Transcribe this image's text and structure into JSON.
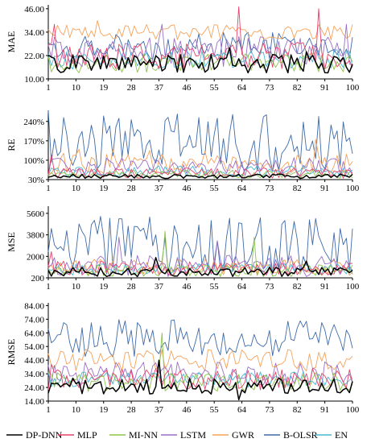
{
  "legend": [
    {
      "name": "DP-DNN",
      "color": "#000000"
    },
    {
      "name": "MLP",
      "color": "#e8416a"
    },
    {
      "name": "MI-NN",
      "color": "#8dc34a"
    },
    {
      "name": "LSTM",
      "color": "#9b6fc7"
    },
    {
      "name": "GWR",
      "color": "#f5a25a"
    },
    {
      "name": "B-OLSR",
      "color": "#3e6aa8"
    },
    {
      "name": "EN",
      "color": "#49b7cf"
    }
  ],
  "chart_data": [
    {
      "type": "line",
      "ylabel": "MAE",
      "x_ticks": [
        "1",
        "10",
        "19",
        "28",
        "37",
        "46",
        "55",
        "64",
        "73",
        "82",
        "91",
        "100"
      ],
      "y_ticks": [
        "10.00",
        "22.00",
        "34.00",
        "46.00"
      ],
      "ylim": [
        10,
        48
      ],
      "x": {
        "start": 1,
        "end": 100
      },
      "series": [
        {
          "name": "DP-DNN",
          "approx": true,
          "base": 18,
          "amp": 5,
          "spikes": [
            [
              60,
              26
            ],
            [
              85,
              24
            ]
          ]
        },
        {
          "name": "MLP",
          "approx": true,
          "base": 22,
          "amp": 7,
          "spikes": [
            [
              3,
              38
            ],
            [
              63,
              47
            ],
            [
              89,
              46
            ]
          ]
        },
        {
          "name": "MI-NN",
          "approx": true,
          "base": 18,
          "amp": 5,
          "spikes": []
        },
        {
          "name": "LSTM",
          "approx": true,
          "base": 24,
          "amp": 8,
          "spikes": [
            [
              38,
              38
            ],
            [
              98,
              38
            ]
          ]
        },
        {
          "name": "GWR",
          "approx": true,
          "base": 34,
          "amp": 4,
          "spikes": [
            [
              17,
              40
            ]
          ]
        },
        {
          "name": "B-OLSR",
          "approx": true,
          "base": 27,
          "amp": 7,
          "spikes": []
        },
        {
          "name": "EN",
          "approx": true,
          "base": 20,
          "amp": 5,
          "spikes": []
        }
      ]
    },
    {
      "type": "line",
      "ylabel": "RE",
      "x_ticks": [
        "1",
        "10",
        "19",
        "28",
        "37",
        "46",
        "55",
        "64",
        "73",
        "82",
        "91",
        "100"
      ],
      "y_ticks": [
        "30%",
        "100%",
        "170%",
        "240%"
      ],
      "ylim": [
        30,
        280
      ],
      "x": {
        "start": 1,
        "end": 100
      },
      "series": [
        {
          "name": "DP-DNN",
          "approx": true,
          "base": 42,
          "amp": 8,
          "spikes": []
        },
        {
          "name": "MLP",
          "approx": true,
          "base": 55,
          "amp": 20,
          "spikes": [
            [
              2,
              120
            ]
          ]
        },
        {
          "name": "MI-NN",
          "approx": true,
          "base": 50,
          "amp": 15,
          "spikes": []
        },
        {
          "name": "LSTM",
          "approx": true,
          "base": 75,
          "amp": 35,
          "spikes": []
        },
        {
          "name": "GWR",
          "approx": true,
          "base": 95,
          "amp": 45,
          "spikes": [
            [
              88,
              175
            ]
          ]
        },
        {
          "name": "B-OLSR",
          "approx": true,
          "base": 170,
          "amp": 110,
          "spikes": []
        },
        {
          "name": "EN",
          "approx": true,
          "base": 60,
          "amp": 20,
          "spikes": []
        }
      ]
    },
    {
      "type": "line",
      "ylabel": "MSE",
      "x_ticks": [
        "1",
        "10",
        "19",
        "28",
        "37",
        "46",
        "55",
        "64",
        "73",
        "82",
        "91",
        "100"
      ],
      "y_ticks": [
        "200",
        "2000",
        "3800",
        "5600"
      ],
      "ylim": [
        200,
        6200
      ],
      "x": {
        "start": 1,
        "end": 100
      },
      "series": [
        {
          "name": "DP-DNN",
          "approx": true,
          "base": 700,
          "amp": 400,
          "spikes": [
            [
              36,
              1900
            ],
            [
              85,
              1600
            ]
          ]
        },
        {
          "name": "MLP",
          "approx": true,
          "base": 1000,
          "amp": 600,
          "spikes": [
            [
              2,
              2400
            ]
          ]
        },
        {
          "name": "MI-NN",
          "approx": true,
          "base": 800,
          "amp": 500,
          "spikes": [
            [
              39,
              4100
            ],
            [
              68,
              3600
            ]
          ]
        },
        {
          "name": "LSTM",
          "approx": true,
          "base": 1200,
          "amp": 900,
          "spikes": [
            [
              24,
              3600
            ],
            [
              56,
              3300
            ]
          ]
        },
        {
          "name": "GWR",
          "approx": true,
          "base": 1100,
          "amp": 700,
          "spikes": []
        },
        {
          "name": "B-OLSR",
          "approx": true,
          "base": 3000,
          "amp": 2500,
          "spikes": []
        },
        {
          "name": "EN",
          "approx": true,
          "base": 900,
          "amp": 500,
          "spikes": []
        }
      ]
    },
    {
      "type": "line",
      "ylabel": "RMSE",
      "x_ticks": [
        "1",
        "10",
        "19",
        "28",
        "37",
        "46",
        "55",
        "64",
        "73",
        "82",
        "91",
        "100"
      ],
      "y_ticks": [
        "14.00",
        "24.00",
        "34.00",
        "44.00",
        "54.00",
        "64.00",
        "74.00",
        "84.00"
      ],
      "ylim": [
        14,
        86
      ],
      "x": {
        "start": 1,
        "end": 100
      },
      "series": [
        {
          "name": "DP-DNN",
          "approx": true,
          "base": 25,
          "amp": 6,
          "spikes": [
            [
              37,
              44
            ],
            [
              63,
              15
            ]
          ]
        },
        {
          "name": "MLP",
          "approx": true,
          "base": 30,
          "amp": 8,
          "spikes": [
            [
              2,
              41
            ]
          ]
        },
        {
          "name": "MI-NN",
          "approx": true,
          "base": 28,
          "amp": 7,
          "spikes": [
            [
              38,
              64
            ]
          ]
        },
        {
          "name": "LSTM",
          "approx": true,
          "base": 34,
          "amp": 9,
          "spikes": []
        },
        {
          "name": "GWR",
          "approx": true,
          "base": 44,
          "amp": 8,
          "spikes": []
        },
        {
          "name": "B-OLSR",
          "approx": true,
          "base": 60,
          "amp": 14,
          "spikes": []
        },
        {
          "name": "EN",
          "approx": true,
          "base": 30,
          "amp": 6,
          "spikes": []
        }
      ]
    }
  ]
}
